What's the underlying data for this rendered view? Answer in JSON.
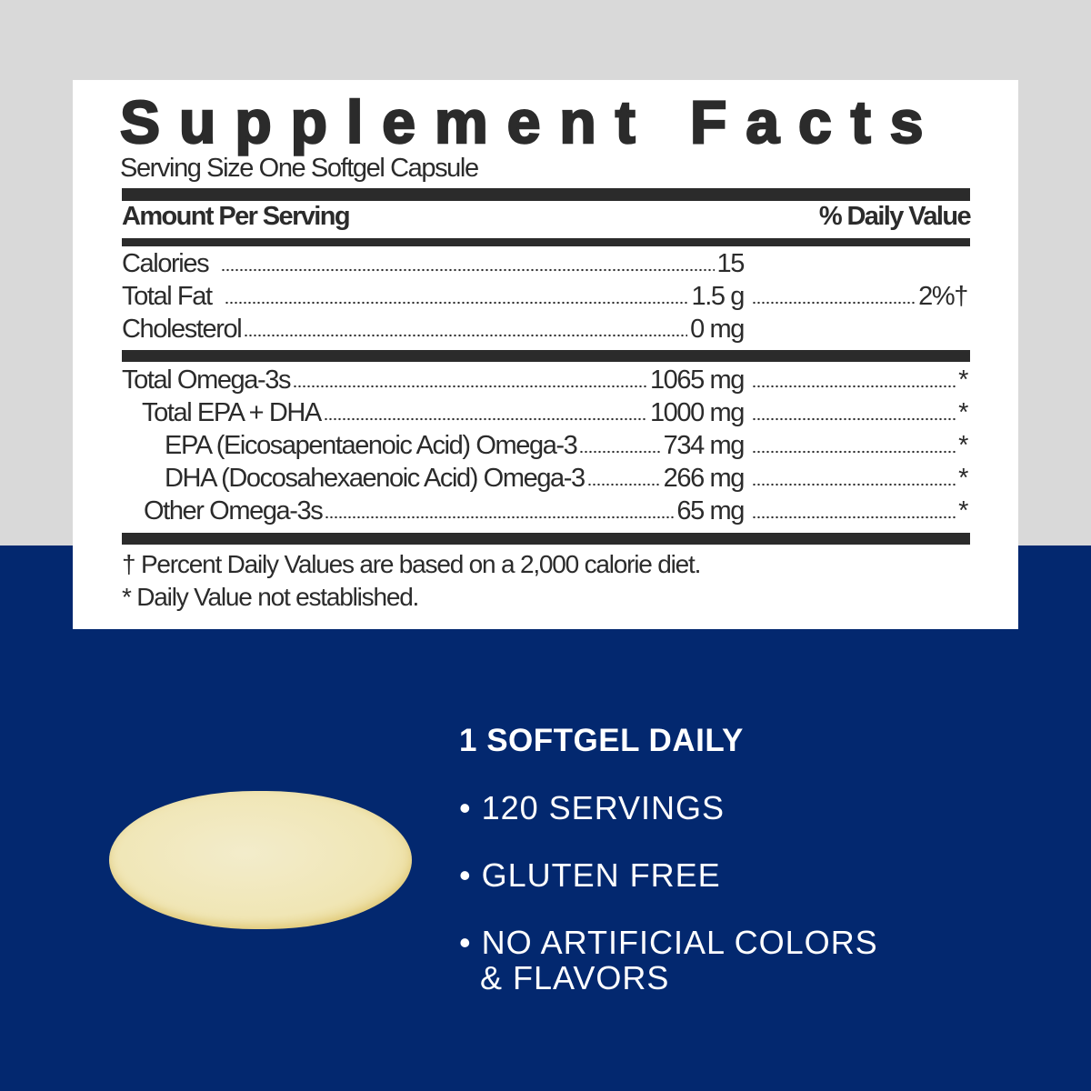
{
  "panel": {
    "title": "Supplement Facts",
    "serving_size": "Serving Size One Softgel Capsule",
    "header": {
      "amount": "Amount Per Serving",
      "daily_value": "% Daily Value"
    },
    "rows_basic": [
      {
        "name": "Calories",
        "amount": "15",
        "dv": ""
      },
      {
        "name": "Total Fat",
        "amount": "1.5 g",
        "dv": "2%†"
      },
      {
        "name": "Cholesterol",
        "amount": "0 mg",
        "dv": ""
      }
    ],
    "rows_omega": [
      {
        "name": "Total Omega-3s",
        "amount": "1065 mg",
        "dv": "*"
      },
      {
        "name": "Total EPA + DHA",
        "amount": "1000 mg",
        "dv": "*"
      },
      {
        "name": "EPA (Eicosapentaenoic Acid) Omega-3",
        "amount": "734 mg",
        "dv": "*"
      },
      {
        "name": "DHA (Docosahexaenoic Acid) Omega-3",
        "amount": "266 mg",
        "dv": "*"
      },
      {
        "name": "Other Omega-3s",
        "amount": "65 mg",
        "dv": "*"
      }
    ],
    "footnotes": [
      "† Percent Daily Values are based on a 2,000 calorie diet.",
      "* Daily Value not established."
    ]
  },
  "features": {
    "headline": "1 SOFTGEL DAILY",
    "bullets": [
      "• 120 SERVINGS",
      "• GLUTEN FREE",
      "• NO ARTIFICIAL COLORS",
      "& FLAVORS"
    ]
  },
  "colors": {
    "navy": "#03286f",
    "gray": "#d9d9d9",
    "softgel": "#f0e6b5"
  }
}
